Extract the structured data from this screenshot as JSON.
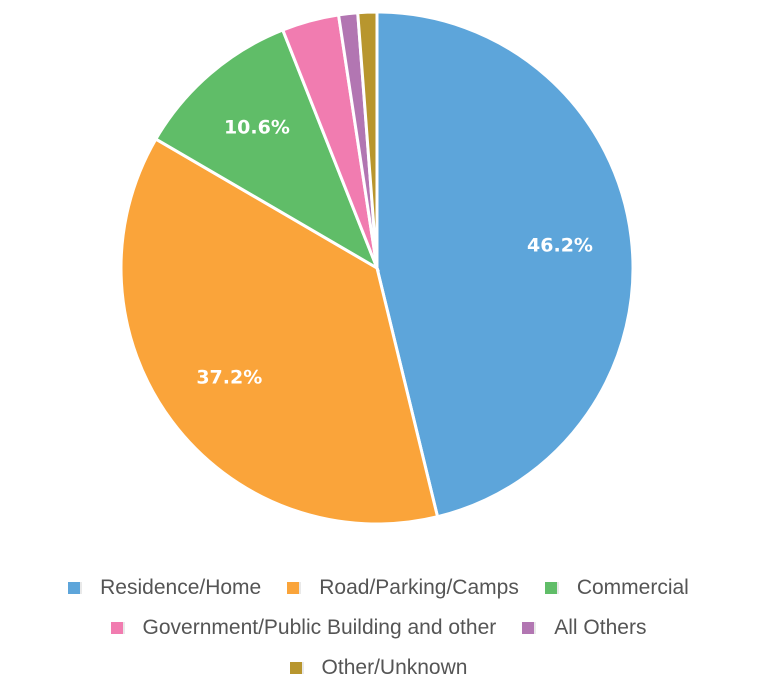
{
  "chart_data": {
    "type": "pie",
    "slices": [
      {
        "label": "Residence/Home",
        "value": 46.2,
        "display": "46.2%",
        "color": "#5da5da"
      },
      {
        "label": "Road/Parking/Camps",
        "value": 37.2,
        "display": "37.2%",
        "color": "#faa43a"
      },
      {
        "label": "Commercial",
        "value": 10.6,
        "display": "10.6%",
        "color": "#60bd68"
      },
      {
        "label": "Government/Public Building and other",
        "value": 3.6,
        "display": "",
        "color": "#f17cb0"
      },
      {
        "label": "All Others",
        "value": 1.2,
        "display": "",
        "color": "#b276b2"
      },
      {
        "label": "Other/Unknown",
        "value": 1.2,
        "display": "",
        "color": "#b8962e"
      }
    ],
    "legend_position": "bottom",
    "legend_rows": [
      [
        0,
        1,
        2
      ],
      [
        3,
        4
      ],
      [
        5
      ]
    ]
  }
}
